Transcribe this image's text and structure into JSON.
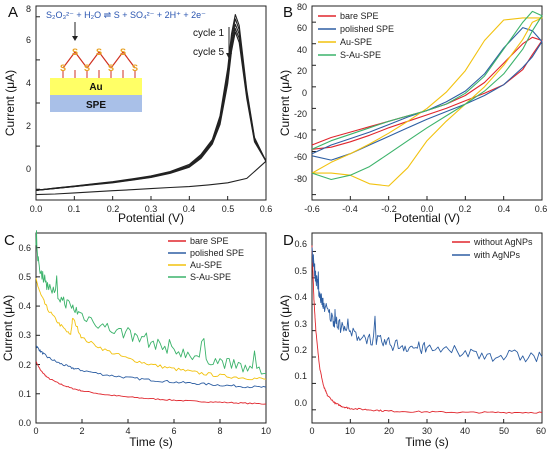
{
  "chart_data": [
    {
      "panel": "A",
      "type": "line",
      "xlabel": "Potential (V)",
      "ylabel": "Current (μA)",
      "xlim": [
        0.0,
        0.6
      ],
      "ylim": [
        -0.5,
        8.5
      ],
      "xticks": [
        "0.0",
        "0.1",
        "0.2",
        "0.3",
        "0.4",
        "0.5",
        "0.6"
      ],
      "yticks": [
        "0",
        "2",
        "4",
        "6",
        "8"
      ],
      "annotations": {
        "equation": "S₂O₃²⁻ + H₂O ⇌ S + SO₄²⁻ + 2H⁺ + 2e⁻",
        "cycle_first": "cycle 1",
        "cycle_last": "cycle 5",
        "layer_top": "Au",
        "layer_bottom": "SPE"
      },
      "colors": {
        "line": "#222222",
        "au_layer": "#ffff66",
        "spe_layer": "#a9c0e8",
        "sulfur": "#e8a020",
        "bond": "#d03020",
        "equation": "#2a55b0"
      },
      "peak": {
        "x": 0.52,
        "y_cycle1": 8.1,
        "y_cycle5": 7.3
      },
      "series": [
        {
          "x": [
            0.0,
            0.05,
            0.1,
            0.15,
            0.2,
            0.25,
            0.3,
            0.35,
            0.4,
            0.43,
            0.46,
            0.48,
            0.5,
            0.51,
            0.52,
            0.53,
            0.55,
            0.57,
            0.6
          ],
          "y": [
            -0.05,
            0.05,
            0.15,
            0.25,
            0.35,
            0.48,
            0.62,
            0.82,
            1.15,
            1.6,
            2.3,
            3.4,
            5.6,
            7.2,
            8.1,
            7.6,
            4.6,
            2.4,
            1.3
          ]
        },
        {
          "x": [
            0.0,
            0.05,
            0.1,
            0.15,
            0.2,
            0.25,
            0.3,
            0.35,
            0.4,
            0.43,
            0.46,
            0.48,
            0.5,
            0.51,
            0.52,
            0.53,
            0.55,
            0.57,
            0.6
          ],
          "y": [
            -0.05,
            0.05,
            0.14,
            0.24,
            0.33,
            0.46,
            0.6,
            0.8,
            1.1,
            1.55,
            2.25,
            3.3,
            5.4,
            7.0,
            7.9,
            7.4,
            4.5,
            2.35,
            1.3
          ]
        },
        {
          "x": [
            0.0,
            0.05,
            0.1,
            0.15,
            0.2,
            0.25,
            0.3,
            0.35,
            0.4,
            0.43,
            0.46,
            0.48,
            0.5,
            0.51,
            0.52,
            0.53,
            0.55,
            0.57,
            0.6
          ],
          "y": [
            -0.05,
            0.04,
            0.13,
            0.23,
            0.32,
            0.45,
            0.58,
            0.78,
            1.08,
            1.5,
            2.2,
            3.2,
            5.2,
            6.8,
            7.65,
            7.2,
            4.4,
            2.3,
            1.3
          ]
        },
        {
          "x": [
            0.0,
            0.05,
            0.1,
            0.15,
            0.2,
            0.25,
            0.3,
            0.35,
            0.4,
            0.43,
            0.46,
            0.48,
            0.5,
            0.51,
            0.52,
            0.53,
            0.55,
            0.57,
            0.6
          ],
          "y": [
            -0.05,
            0.04,
            0.12,
            0.22,
            0.31,
            0.43,
            0.56,
            0.76,
            1.05,
            1.45,
            2.15,
            3.1,
            5.0,
            6.6,
            7.45,
            7.0,
            4.3,
            2.25,
            1.3
          ]
        },
        {
          "x": [
            0.0,
            0.05,
            0.1,
            0.15,
            0.2,
            0.25,
            0.3,
            0.35,
            0.4,
            0.43,
            0.46,
            0.48,
            0.5,
            0.51,
            0.52,
            0.53,
            0.55,
            0.57,
            0.6
          ],
          "y": [
            -0.05,
            0.04,
            0.12,
            0.21,
            0.3,
            0.42,
            0.55,
            0.74,
            1.02,
            1.42,
            2.1,
            3.0,
            4.9,
            6.4,
            7.3,
            6.8,
            4.2,
            2.2,
            1.3
          ]
        },
        {
          "x": [
            0.6,
            0.55,
            0.5,
            0.45,
            0.4,
            0.35,
            0.3,
            0.25,
            0.2,
            0.15,
            0.1,
            0.05,
            0.0
          ],
          "y": [
            1.3,
            0.5,
            0.3,
            0.2,
            0.12,
            0.08,
            0.03,
            -0.02,
            -0.07,
            -0.12,
            -0.17,
            -0.22,
            -0.25
          ]
        }
      ]
    },
    {
      "panel": "B",
      "type": "line",
      "xlabel": "Potential (V)",
      "ylabel": "Current (μA)",
      "xlim": [
        -0.6,
        0.6
      ],
      "ylim": [
        -85,
        95
      ],
      "xticks": [
        "-0.6",
        "-0.4",
        "-0.2",
        "0.0",
        "0.2",
        "0.4",
        "0.6"
      ],
      "yticks": [
        "-80",
        "-60",
        "-40",
        "-20",
        "0",
        "20",
        "40",
        "60",
        "80"
      ],
      "legend_position": "top-left",
      "series": [
        {
          "name": "bare SPE",
          "color": "#e0262d",
          "x": [
            -0.6,
            -0.5,
            -0.4,
            -0.3,
            -0.2,
            -0.1,
            0.0,
            0.1,
            0.2,
            0.3,
            0.4,
            0.5,
            0.55,
            0.6,
            0.55,
            0.5,
            0.4,
            0.3,
            0.2,
            0.1,
            0.0,
            -0.1,
            -0.2,
            -0.3,
            -0.4,
            -0.5,
            -0.6
          ],
          "y": [
            -34,
            -27,
            -22,
            -17,
            -12,
            -7,
            -2,
            4,
            12,
            24,
            42,
            60,
            66,
            63,
            50,
            36,
            22,
            14,
            7,
            0,
            -6,
            -12,
            -18,
            -25,
            -31,
            -36,
            -38
          ]
        },
        {
          "name": "polished SPE",
          "color": "#2e5fa3",
          "x": [
            -0.6,
            -0.5,
            -0.4,
            -0.3,
            -0.2,
            -0.1,
            0.0,
            0.1,
            0.2,
            0.3,
            0.4,
            0.5,
            0.55,
            0.6,
            0.55,
            0.5,
            0.4,
            0.3,
            0.2,
            0.1,
            0.0,
            -0.1,
            -0.2,
            -0.3,
            -0.4,
            -0.5,
            -0.6
          ],
          "y": [
            -42,
            -34,
            -28,
            -22,
            -15,
            -8,
            -2,
            6,
            16,
            32,
            56,
            75,
            72,
            62,
            48,
            38,
            22,
            12,
            4,
            -3,
            -10,
            -18,
            -26,
            -34,
            -42,
            -48,
            -44
          ]
        },
        {
          "name": "Au-SPE",
          "color": "#f2c20f",
          "x": [
            -0.6,
            -0.5,
            -0.4,
            -0.3,
            -0.2,
            -0.1,
            0.0,
            0.1,
            0.2,
            0.3,
            0.4,
            0.5,
            0.55,
            0.6,
            0.55,
            0.5,
            0.4,
            0.3,
            0.2,
            0.1,
            0.0,
            -0.1,
            -0.2,
            -0.3,
            -0.4,
            -0.5,
            -0.6
          ],
          "y": [
            -60,
            -50,
            -42,
            -33,
            -23,
            -12,
            0,
            15,
            35,
            63,
            82,
            84,
            84,
            84,
            80,
            64,
            40,
            20,
            4,
            -12,
            -30,
            -55,
            -72,
            -70,
            -62,
            -60,
            -60
          ]
        },
        {
          "name": "S-Au-SPE",
          "color": "#3cb36b",
          "x": [
            -0.6,
            -0.5,
            -0.4,
            -0.3,
            -0.2,
            -0.1,
            0.0,
            0.1,
            0.2,
            0.3,
            0.4,
            0.5,
            0.55,
            0.6,
            0.55,
            0.5,
            0.4,
            0.3,
            0.2,
            0.1,
            0.0,
            -0.1,
            -0.2,
            -0.3,
            -0.4,
            -0.5,
            -0.6
          ],
          "y": [
            -38,
            -30,
            -24,
            -18,
            -12,
            -7,
            -2,
            4,
            14,
            30,
            55,
            80,
            90,
            86,
            72,
            55,
            32,
            16,
            4,
            -7,
            -18,
            -30,
            -42,
            -54,
            -62,
            -66,
            -60
          ]
        }
      ]
    },
    {
      "panel": "C",
      "type": "line",
      "xlabel": "Time (s)",
      "ylabel": "Current (μA)",
      "xlim": [
        0,
        10
      ],
      "ylim": [
        0.0,
        0.65
      ],
      "xticks": [
        "0",
        "2",
        "4",
        "6",
        "8",
        "10"
      ],
      "yticks": [
        "0.0",
        "0.1",
        "0.2",
        "0.3",
        "0.4",
        "0.5",
        "0.6"
      ],
      "legend_position": "top-right",
      "series": [
        {
          "name": "bare SPE",
          "color": "#e0262d",
          "x": [
            0,
            0.2,
            0.5,
            1,
            1.5,
            2,
            3,
            4,
            5,
            6,
            7,
            8,
            9,
            10
          ],
          "y": [
            0.21,
            0.18,
            0.155,
            0.135,
            0.12,
            0.11,
            0.097,
            0.089,
            0.083,
            0.078,
            0.074,
            0.071,
            0.068,
            0.065
          ]
        },
        {
          "name": "polished SPE",
          "color": "#2e5fa3",
          "x": [
            0,
            0.2,
            0.5,
            1,
            1.5,
            2,
            3,
            4,
            5,
            6,
            7,
            8,
            9,
            10
          ],
          "y": [
            0.265,
            0.245,
            0.225,
            0.205,
            0.19,
            0.18,
            0.165,
            0.155,
            0.147,
            0.14,
            0.135,
            0.13,
            0.125,
            0.122
          ]
        },
        {
          "name": "Au-SPE",
          "color": "#f2c20f",
          "x": [
            0,
            0.2,
            0.5,
            1,
            1.5,
            1.6,
            2,
            3,
            4,
            5,
            6,
            7,
            8,
            9,
            10
          ],
          "y": [
            0.49,
            0.44,
            0.39,
            0.34,
            0.3,
            0.36,
            0.29,
            0.25,
            0.22,
            0.2,
            0.185,
            0.172,
            0.162,
            0.155,
            0.15
          ]
        },
        {
          "name": "S-Au-SPE",
          "color": "#3cb36b",
          "x": [
            0,
            0.2,
            0.5,
            1,
            1.5,
            2,
            3,
            4,
            5,
            6,
            7,
            8,
            9,
            10
          ],
          "y": [
            0.6,
            0.52,
            0.47,
            0.43,
            0.4,
            0.37,
            0.33,
            0.3,
            0.275,
            0.25,
            0.23,
            0.21,
            0.19,
            0.17
          ]
        }
      ]
    },
    {
      "panel": "D",
      "type": "line",
      "xlabel": "Time (s)",
      "ylabel": "Current (μA)",
      "xlim": [
        0,
        60
      ],
      "ylim": [
        -0.05,
        0.67
      ],
      "xticks": [
        "0",
        "10",
        "20",
        "30",
        "40",
        "50",
        "60"
      ],
      "yticks": [
        "0.0",
        "0.1",
        "0.2",
        "0.3",
        "0.4",
        "0.5",
        "0.6"
      ],
      "legend_position": "top-right",
      "series": [
        {
          "name": "without AgNPs",
          "color": "#e0262d",
          "x": [
            0,
            0.5,
            1,
            2,
            3,
            4,
            6,
            8,
            10,
            15,
            20,
            30,
            40,
            50,
            60
          ],
          "y": [
            0.62,
            0.42,
            0.3,
            0.16,
            0.09,
            0.055,
            0.025,
            0.012,
            0.005,
            0.0,
            -0.005,
            -0.008,
            -0.01,
            -0.01,
            -0.01
          ]
        },
        {
          "name": "with AgNPs",
          "color": "#2e5fa3",
          "x": [
            0,
            0.5,
            1,
            2,
            3,
            5,
            7,
            10,
            15,
            20,
            25,
            30,
            40,
            50,
            60
          ],
          "y": [
            0.6,
            0.55,
            0.5,
            0.44,
            0.4,
            0.35,
            0.32,
            0.29,
            0.27,
            0.25,
            0.24,
            0.23,
            0.215,
            0.205,
            0.2
          ]
        }
      ]
    }
  ]
}
